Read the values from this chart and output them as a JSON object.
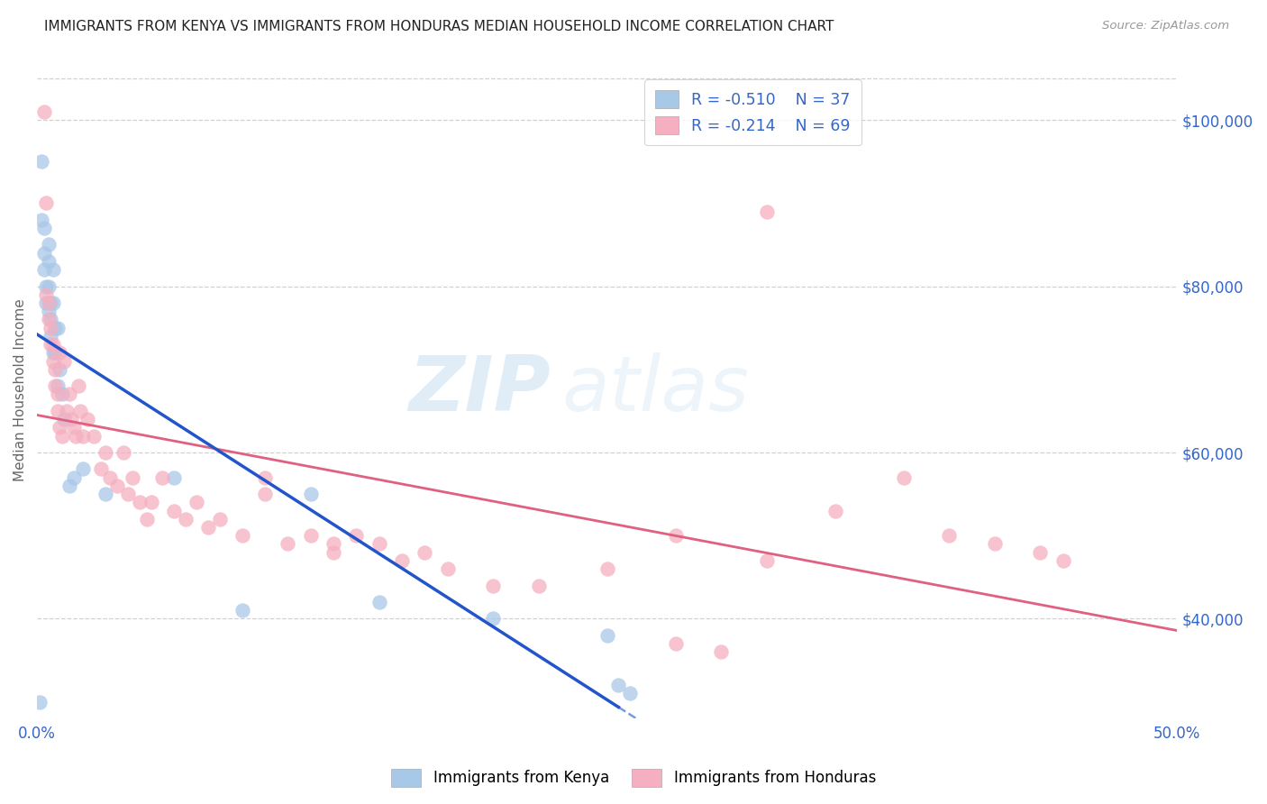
{
  "title": "IMMIGRANTS FROM KENYA VS IMMIGRANTS FROM HONDURAS MEDIAN HOUSEHOLD INCOME CORRELATION CHART",
  "source": "Source: ZipAtlas.com",
  "ylabel": "Median Household Income",
  "xlim": [
    0.0,
    0.5
  ],
  "ylim": [
    28000,
    107000
  ],
  "xticks": [
    0.0,
    0.1,
    0.2,
    0.3,
    0.4,
    0.5
  ],
  "xticklabels": [
    "0.0%",
    "",
    "",
    "",
    "",
    "50.0%"
  ],
  "yticks_right": [
    40000,
    60000,
    80000,
    100000
  ],
  "ytick_labels_right": [
    "$40,000",
    "$60,000",
    "$80,000",
    "$100,000"
  ],
  "kenya_R": -0.51,
  "kenya_N": 37,
  "honduras_R": -0.214,
  "honduras_N": 69,
  "kenya_color": "#a8c8e8",
  "honduras_color": "#f5afc0",
  "kenya_line_color": "#2255cc",
  "honduras_line_color": "#e06080",
  "legend_label_kenya": "Immigrants from Kenya",
  "legend_label_honduras": "Immigrants from Honduras",
  "watermark_zip": "ZIP",
  "watermark_atlas": "atlas",
  "kenya_x": [
    0.001,
    0.002,
    0.002,
    0.003,
    0.003,
    0.003,
    0.004,
    0.004,
    0.005,
    0.005,
    0.005,
    0.005,
    0.006,
    0.006,
    0.006,
    0.007,
    0.007,
    0.007,
    0.008,
    0.008,
    0.009,
    0.009,
    0.01,
    0.011,
    0.012,
    0.014,
    0.016,
    0.02,
    0.03,
    0.06,
    0.09,
    0.12,
    0.15,
    0.2,
    0.25,
    0.255,
    0.26
  ],
  "kenya_y": [
    30000,
    95000,
    88000,
    87000,
    84000,
    82000,
    80000,
    78000,
    85000,
    83000,
    80000,
    77000,
    78000,
    76000,
    74000,
    82000,
    78000,
    72000,
    75000,
    72000,
    75000,
    68000,
    70000,
    67000,
    64000,
    56000,
    57000,
    58000,
    55000,
    57000,
    41000,
    55000,
    42000,
    40000,
    38000,
    32000,
    31000
  ],
  "honduras_x": [
    0.003,
    0.004,
    0.004,
    0.005,
    0.005,
    0.006,
    0.006,
    0.007,
    0.007,
    0.008,
    0.008,
    0.009,
    0.009,
    0.01,
    0.01,
    0.011,
    0.012,
    0.013,
    0.014,
    0.015,
    0.016,
    0.017,
    0.018,
    0.019,
    0.02,
    0.022,
    0.025,
    0.028,
    0.03,
    0.032,
    0.035,
    0.038,
    0.04,
    0.042,
    0.045,
    0.048,
    0.05,
    0.055,
    0.06,
    0.065,
    0.07,
    0.075,
    0.08,
    0.09,
    0.1,
    0.11,
    0.12,
    0.13,
    0.14,
    0.15,
    0.16,
    0.17,
    0.18,
    0.2,
    0.22,
    0.25,
    0.28,
    0.3,
    0.32,
    0.35,
    0.38,
    0.4,
    0.42,
    0.44,
    0.45,
    0.1,
    0.13,
    0.28,
    0.32
  ],
  "honduras_y": [
    101000,
    90000,
    79000,
    78000,
    76000,
    75000,
    73000,
    73000,
    71000,
    70000,
    68000,
    67000,
    65000,
    72000,
    63000,
    62000,
    71000,
    65000,
    67000,
    64000,
    63000,
    62000,
    68000,
    65000,
    62000,
    64000,
    62000,
    58000,
    60000,
    57000,
    56000,
    60000,
    55000,
    57000,
    54000,
    52000,
    54000,
    57000,
    53000,
    52000,
    54000,
    51000,
    52000,
    50000,
    57000,
    49000,
    50000,
    48000,
    50000,
    49000,
    47000,
    48000,
    46000,
    44000,
    44000,
    46000,
    37000,
    36000,
    89000,
    53000,
    57000,
    50000,
    49000,
    48000,
    47000,
    55000,
    49000,
    50000,
    47000
  ]
}
